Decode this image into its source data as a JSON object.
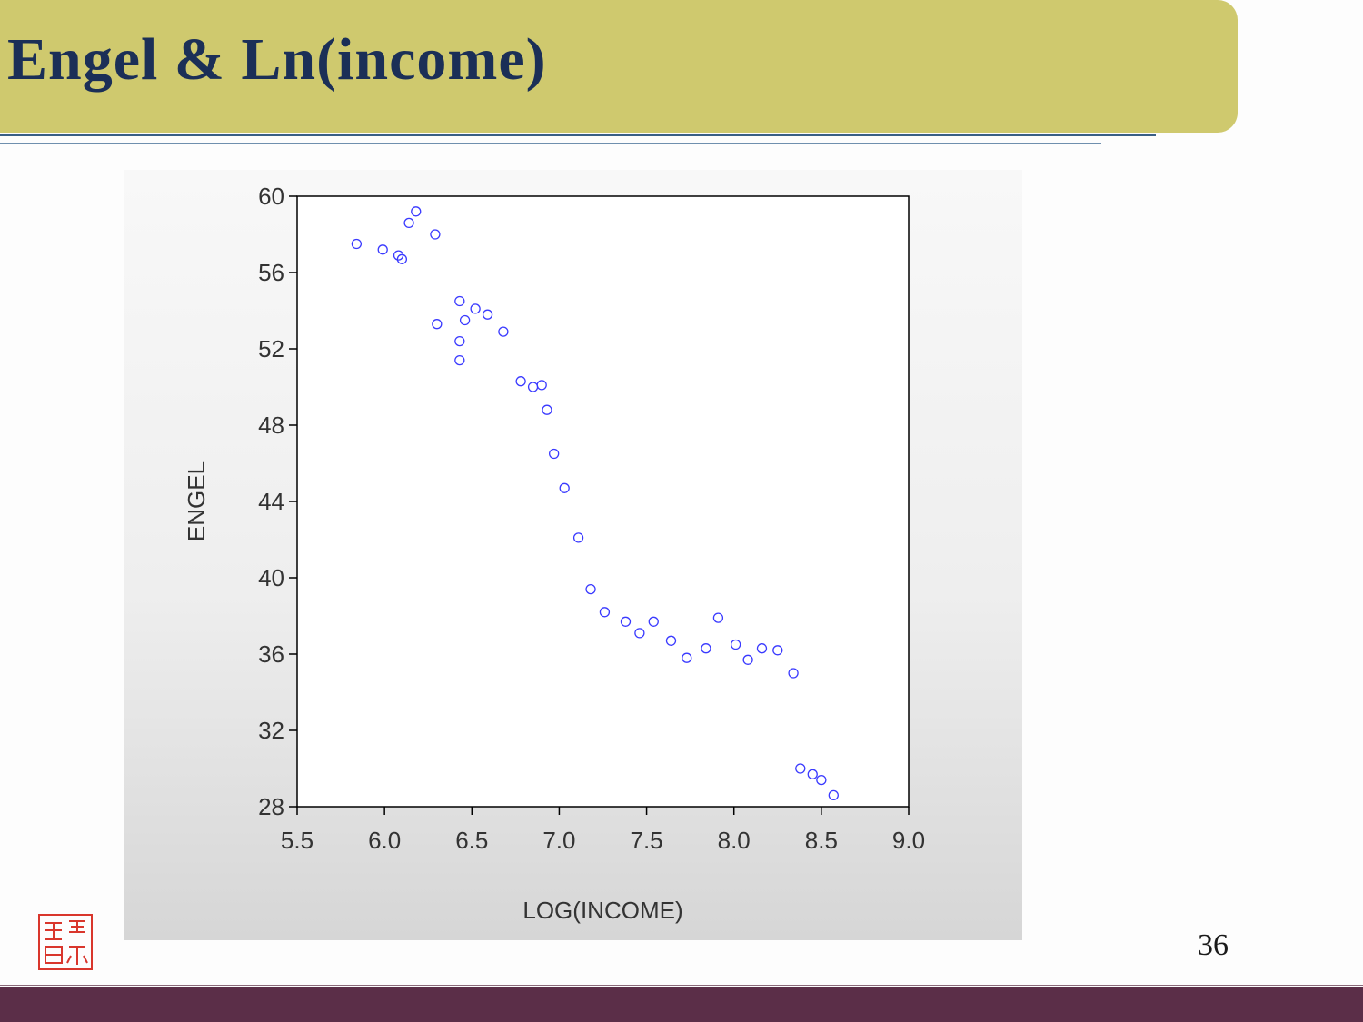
{
  "slide": {
    "title": "Engel & Ln(income)",
    "page_number": "36"
  },
  "colors": {
    "title_bar": "#cfc96e",
    "title_text": "#1b2f57",
    "footer_bar": "#5b2e48",
    "marker": "#3a3aff",
    "seal": "#d9362c"
  },
  "chart_data": {
    "type": "scatter",
    "title": "",
    "xlabel": "LOG(INCOME)",
    "ylabel": "ENGEL",
    "xlim": [
      5.5,
      9.0
    ],
    "ylim": [
      28,
      60
    ],
    "xticks": [
      "5.5",
      "6.0",
      "6.5",
      "7.0",
      "7.5",
      "8.0",
      "8.5",
      "9.0"
    ],
    "yticks": [
      "28",
      "32",
      "36",
      "40",
      "44",
      "48",
      "52",
      "56",
      "60"
    ],
    "grid": false,
    "marker": "open-circle",
    "points": [
      {
        "x": 5.84,
        "y": 57.5
      },
      {
        "x": 5.99,
        "y": 57.2
      },
      {
        "x": 6.08,
        "y": 56.9
      },
      {
        "x": 6.1,
        "y": 56.7
      },
      {
        "x": 6.14,
        "y": 58.6
      },
      {
        "x": 6.18,
        "y": 59.2
      },
      {
        "x": 6.29,
        "y": 58.0
      },
      {
        "x": 6.3,
        "y": 53.3
      },
      {
        "x": 6.43,
        "y": 54.5
      },
      {
        "x": 6.43,
        "y": 52.4
      },
      {
        "x": 6.43,
        "y": 51.4
      },
      {
        "x": 6.46,
        "y": 53.5
      },
      {
        "x": 6.52,
        "y": 54.1
      },
      {
        "x": 6.59,
        "y": 53.8
      },
      {
        "x": 6.68,
        "y": 52.9
      },
      {
        "x": 6.78,
        "y": 50.3
      },
      {
        "x": 6.85,
        "y": 50.0
      },
      {
        "x": 6.9,
        "y": 50.1
      },
      {
        "x": 6.93,
        "y": 48.8
      },
      {
        "x": 6.97,
        "y": 46.5
      },
      {
        "x": 7.03,
        "y": 44.7
      },
      {
        "x": 7.11,
        "y": 42.1
      },
      {
        "x": 7.18,
        "y": 39.4
      },
      {
        "x": 7.26,
        "y": 38.2
      },
      {
        "x": 7.38,
        "y": 37.7
      },
      {
        "x": 7.46,
        "y": 37.1
      },
      {
        "x": 7.54,
        "y": 37.7
      },
      {
        "x": 7.64,
        "y": 36.7
      },
      {
        "x": 7.73,
        "y": 35.8
      },
      {
        "x": 7.84,
        "y": 36.3
      },
      {
        "x": 7.91,
        "y": 37.9
      },
      {
        "x": 8.01,
        "y": 36.5
      },
      {
        "x": 8.08,
        "y": 35.7
      },
      {
        "x": 8.16,
        "y": 36.3
      },
      {
        "x": 8.25,
        "y": 36.2
      },
      {
        "x": 8.34,
        "y": 35.0
      },
      {
        "x": 8.38,
        "y": 30.0
      },
      {
        "x": 8.45,
        "y": 29.7
      },
      {
        "x": 8.5,
        "y": 29.4
      },
      {
        "x": 8.57,
        "y": 28.6
      }
    ]
  }
}
